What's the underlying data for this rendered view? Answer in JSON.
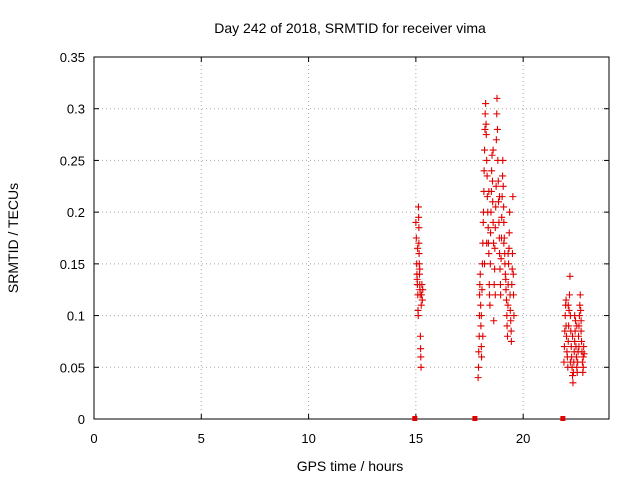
{
  "chart_data": {
    "type": "scatter",
    "title": "Day 242 of 2018, SRMTID for receiver vima",
    "xlabel": "GPS time / hours",
    "ylabel": "SRMTID / TECUs",
    "xlim": [
      0,
      24
    ],
    "ylim": [
      0,
      0.35
    ],
    "xticks": [
      0,
      5,
      10,
      15,
      20
    ],
    "yticks": [
      0,
      0.05,
      0.1,
      0.15,
      0.2,
      0.25,
      0.3,
      0.35
    ],
    "xtick_labels": [
      "0",
      "5",
      "10",
      "15",
      "20"
    ],
    "ytick_labels": [
      "0",
      "0.05",
      "0.1",
      "0.15",
      "0.2",
      "0.25",
      "0.3",
      "0.35"
    ],
    "grid": true,
    "legend": "none",
    "marker": "+",
    "color": "#e00000",
    "series": [
      {
        "points": [
          [
            15.0,
            0.19
          ],
          [
            15.02,
            0.175
          ],
          [
            15.04,
            0.15
          ],
          [
            15.05,
            0.14
          ],
          [
            15.07,
            0.13
          ],
          [
            15.09,
            0.12
          ],
          [
            15.1,
            0.105
          ],
          [
            15.11,
            0.1
          ],
          [
            15.12,
            0.205
          ],
          [
            15.13,
            0.195
          ],
          [
            15.14,
            0.17
          ],
          [
            15.15,
            0.16
          ],
          [
            15.16,
            0.15
          ],
          [
            15.17,
            0.14
          ],
          [
            15.18,
            0.13
          ],
          [
            15.19,
            0.125
          ],
          [
            15.2,
            0.12
          ],
          [
            15.21,
            0.08
          ],
          [
            15.22,
            0.068
          ],
          [
            15.23,
            0.06
          ],
          [
            15.24,
            0.05
          ],
          [
            15.25,
            0.11
          ],
          [
            15.26,
            0.12
          ],
          [
            15.28,
            0.13
          ],
          [
            15.3,
            0.115
          ],
          [
            15.32,
            0.125
          ],
          [
            15.06,
            0.135
          ],
          [
            15.08,
            0.165
          ],
          [
            15.14,
            0.185
          ],
          [
            15.18,
            0.145
          ],
          [
            17.9,
            0.04
          ],
          [
            17.92,
            0.05
          ],
          [
            17.93,
            0.065
          ],
          [
            17.95,
            0.08
          ],
          [
            17.96,
            0.1
          ],
          [
            17.97,
            0.12
          ],
          [
            17.98,
            0.13
          ],
          [
            18.0,
            0.14
          ],
          [
            18.02,
            0.11
          ],
          [
            18.03,
            0.09
          ],
          [
            18.05,
            0.07
          ],
          [
            18.06,
            0.06
          ],
          [
            18.08,
            0.125
          ],
          [
            18.1,
            0.15
          ],
          [
            18.12,
            0.17
          ],
          [
            18.14,
            0.19
          ],
          [
            18.15,
            0.2
          ],
          [
            18.17,
            0.22
          ],
          [
            18.18,
            0.24
          ],
          [
            18.2,
            0.26
          ],
          [
            18.22,
            0.28
          ],
          [
            18.23,
            0.295
          ],
          [
            18.25,
            0.305
          ],
          [
            18.27,
            0.285
          ],
          [
            18.28,
            0.275
          ],
          [
            18.3,
            0.25
          ],
          [
            18.32,
            0.235
          ],
          [
            18.33,
            0.215
          ],
          [
            18.35,
            0.2
          ],
          [
            18.37,
            0.185
          ],
          [
            18.38,
            0.17
          ],
          [
            18.4,
            0.16
          ],
          [
            18.42,
            0.13
          ],
          [
            18.43,
            0.12
          ],
          [
            18.45,
            0.11
          ],
          [
            18.47,
            0.15
          ],
          [
            18.48,
            0.18
          ],
          [
            18.5,
            0.2
          ],
          [
            18.52,
            0.22
          ],
          [
            18.53,
            0.24
          ],
          [
            18.55,
            0.255
          ],
          [
            18.57,
            0.23
          ],
          [
            18.58,
            0.21
          ],
          [
            18.6,
            0.19
          ],
          [
            18.62,
            0.17
          ],
          [
            18.63,
            0.095
          ],
          [
            18.65,
            0.13
          ],
          [
            18.67,
            0.145
          ],
          [
            18.68,
            0.165
          ],
          [
            18.7,
            0.185
          ],
          [
            18.72,
            0.205
          ],
          [
            18.74,
            0.225
          ],
          [
            18.75,
            0.27
          ],
          [
            18.77,
            0.295
          ],
          [
            18.78,
            0.31
          ],
          [
            18.8,
            0.28
          ],
          [
            18.82,
            0.25
          ],
          [
            18.84,
            0.23
          ],
          [
            18.85,
            0.21
          ],
          [
            18.87,
            0.19
          ],
          [
            18.89,
            0.175
          ],
          [
            18.9,
            0.16
          ],
          [
            18.92,
            0.145
          ],
          [
            18.94,
            0.13
          ],
          [
            18.95,
            0.12
          ],
          [
            18.97,
            0.155
          ],
          [
            18.99,
            0.175
          ],
          [
            19.0,
            0.195
          ],
          [
            19.02,
            0.215
          ],
          [
            19.04,
            0.235
          ],
          [
            19.05,
            0.25
          ],
          [
            19.07,
            0.225
          ],
          [
            19.09,
            0.205
          ],
          [
            19.1,
            0.19
          ],
          [
            19.12,
            0.175
          ],
          [
            19.14,
            0.16
          ],
          [
            19.15,
            0.15
          ],
          [
            19.17,
            0.14
          ],
          [
            19.19,
            0.135
          ],
          [
            19.2,
            0.125
          ],
          [
            19.22,
            0.115
          ],
          [
            19.24,
            0.1
          ],
          [
            19.25,
            0.09
          ],
          [
            19.27,
            0.08
          ],
          [
            19.29,
            0.11
          ],
          [
            19.3,
            0.13
          ],
          [
            19.32,
            0.15
          ],
          [
            19.34,
            0.165
          ],
          [
            19.35,
            0.18
          ],
          [
            19.37,
            0.2
          ],
          [
            19.39,
            0.12
          ],
          [
            19.4,
            0.105
          ],
          [
            19.42,
            0.095
          ],
          [
            19.44,
            0.085
          ],
          [
            19.45,
            0.075
          ],
          [
            19.47,
            0.13
          ],
          [
            19.49,
            0.145
          ],
          [
            19.5,
            0.16
          ],
          [
            19.52,
            0.215
          ],
          [
            19.54,
            0.14
          ],
          [
            19.55,
            0.12
          ],
          [
            19.57,
            0.1
          ],
          [
            18.05,
            0.1
          ],
          [
            18.12,
            0.08
          ],
          [
            18.2,
            0.15
          ],
          [
            18.3,
            0.17
          ],
          [
            18.4,
            0.22
          ],
          [
            18.6,
            0.26
          ],
          [
            18.7,
            0.12
          ],
          [
            18.9,
            0.215
          ],
          [
            19.1,
            0.17
          ],
          [
            19.3,
            0.16
          ],
          [
            21.9,
            0.055
          ],
          [
            21.92,
            0.07
          ],
          [
            21.94,
            0.085
          ],
          [
            21.96,
            0.1
          ],
          [
            21.98,
            0.11
          ],
          [
            22.0,
            0.09
          ],
          [
            22.02,
            0.08
          ],
          [
            22.04,
            0.065
          ],
          [
            22.06,
            0.06
          ],
          [
            22.08,
            0.05
          ],
          [
            22.1,
            0.075
          ],
          [
            22.12,
            0.09
          ],
          [
            22.14,
            0.105
          ],
          [
            22.16,
            0.12
          ],
          [
            22.18,
            0.138
          ],
          [
            22.2,
            0.1
          ],
          [
            22.22,
            0.085
          ],
          [
            22.24,
            0.07
          ],
          [
            22.26,
            0.06
          ],
          [
            22.28,
            0.05
          ],
          [
            22.3,
            0.042
          ],
          [
            22.32,
            0.035
          ],
          [
            22.34,
            0.045
          ],
          [
            22.36,
            0.055
          ],
          [
            22.38,
            0.065
          ],
          [
            22.4,
            0.075
          ],
          [
            22.42,
            0.085
          ],
          [
            22.44,
            0.095
          ],
          [
            22.46,
            0.07
          ],
          [
            22.48,
            0.06
          ],
          [
            22.5,
            0.05
          ],
          [
            22.52,
            0.045
          ],
          [
            22.54,
            0.055
          ],
          [
            22.56,
            0.065
          ],
          [
            22.58,
            0.08
          ],
          [
            22.6,
            0.09
          ],
          [
            22.62,
            0.1
          ],
          [
            22.64,
            0.11
          ],
          [
            22.66,
            0.12
          ],
          [
            22.68,
            0.105
          ],
          [
            22.7,
            0.085
          ],
          [
            22.72,
            0.075
          ],
          [
            22.74,
            0.065
          ],
          [
            22.76,
            0.055
          ],
          [
            22.78,
            0.045
          ],
          [
            22.8,
            0.06
          ],
          [
            22.82,
            0.07
          ],
          [
            22.84,
            0.063
          ],
          [
            22.0,
            0.115
          ],
          [
            22.1,
            0.11
          ],
          [
            22.2,
            0.055
          ],
          [
            22.3,
            0.08
          ],
          [
            22.4,
            0.1
          ],
          [
            22.5,
            0.09
          ],
          [
            22.6,
            0.07
          ],
          [
            22.7,
            0.095
          ],
          [
            22.8,
            0.05
          ]
        ]
      },
      {
        "points": [
          [
            14.95,
            0
          ],
          [
            17.75,
            0
          ],
          [
            21.85,
            0
          ]
        ],
        "marker": "square"
      }
    ]
  }
}
